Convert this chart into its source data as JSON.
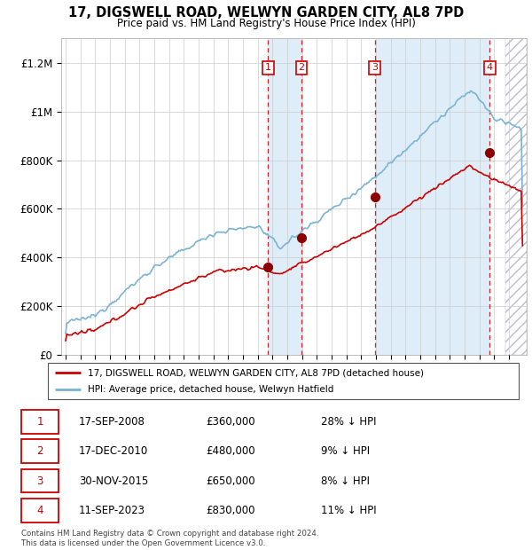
{
  "title": "17, DIGSWELL ROAD, WELWYN GARDEN CITY, AL8 7PD",
  "subtitle": "Price paid vs. HM Land Registry's House Price Index (HPI)",
  "ylim": [
    0,
    1300000
  ],
  "yticks": [
    0,
    200000,
    400000,
    600000,
    800000,
    1000000,
    1200000
  ],
  "ytick_labels": [
    "£0",
    "£200K",
    "£400K",
    "£600K",
    "£800K",
    "£1M",
    "£1.2M"
  ],
  "xlim_start": 1994.7,
  "xlim_end": 2026.2,
  "purchases": [
    {
      "date_num": 2008.71,
      "price": 360000,
      "label": "1"
    },
    {
      "date_num": 2010.96,
      "price": 480000,
      "label": "2"
    },
    {
      "date_num": 2015.92,
      "price": 650000,
      "label": "3"
    },
    {
      "date_num": 2023.71,
      "price": 830000,
      "label": "4"
    }
  ],
  "ownership_bands": [
    {
      "start": 2008.71,
      "end": 2010.96
    },
    {
      "start": 2015.92,
      "end": 2023.71
    }
  ],
  "hatch_start": 2024.75,
  "legend_line1": "17, DIGSWELL ROAD, WELWYN GARDEN CITY, AL8 7PD (detached house)",
  "legend_line2": "HPI: Average price, detached house, Welwyn Hatfield",
  "table_rows": [
    [
      "1",
      "17-SEP-2008",
      "£360,000",
      "28% ↓ HPI"
    ],
    [
      "2",
      "17-DEC-2010",
      "£480,000",
      "9% ↓ HPI"
    ],
    [
      "3",
      "30-NOV-2015",
      "£650,000",
      "8% ↓ HPI"
    ],
    [
      "4",
      "11-SEP-2023",
      "£830,000",
      "11% ↓ HPI"
    ]
  ],
  "footer": "Contains HM Land Registry data © Crown copyright and database right 2024.\nThis data is licensed under the Open Government Licence v3.0.",
  "hpi_color": "#7ab3d4",
  "price_color": "#cc0000",
  "shade_color": "#deedf7",
  "marker_color": "#8b0000"
}
